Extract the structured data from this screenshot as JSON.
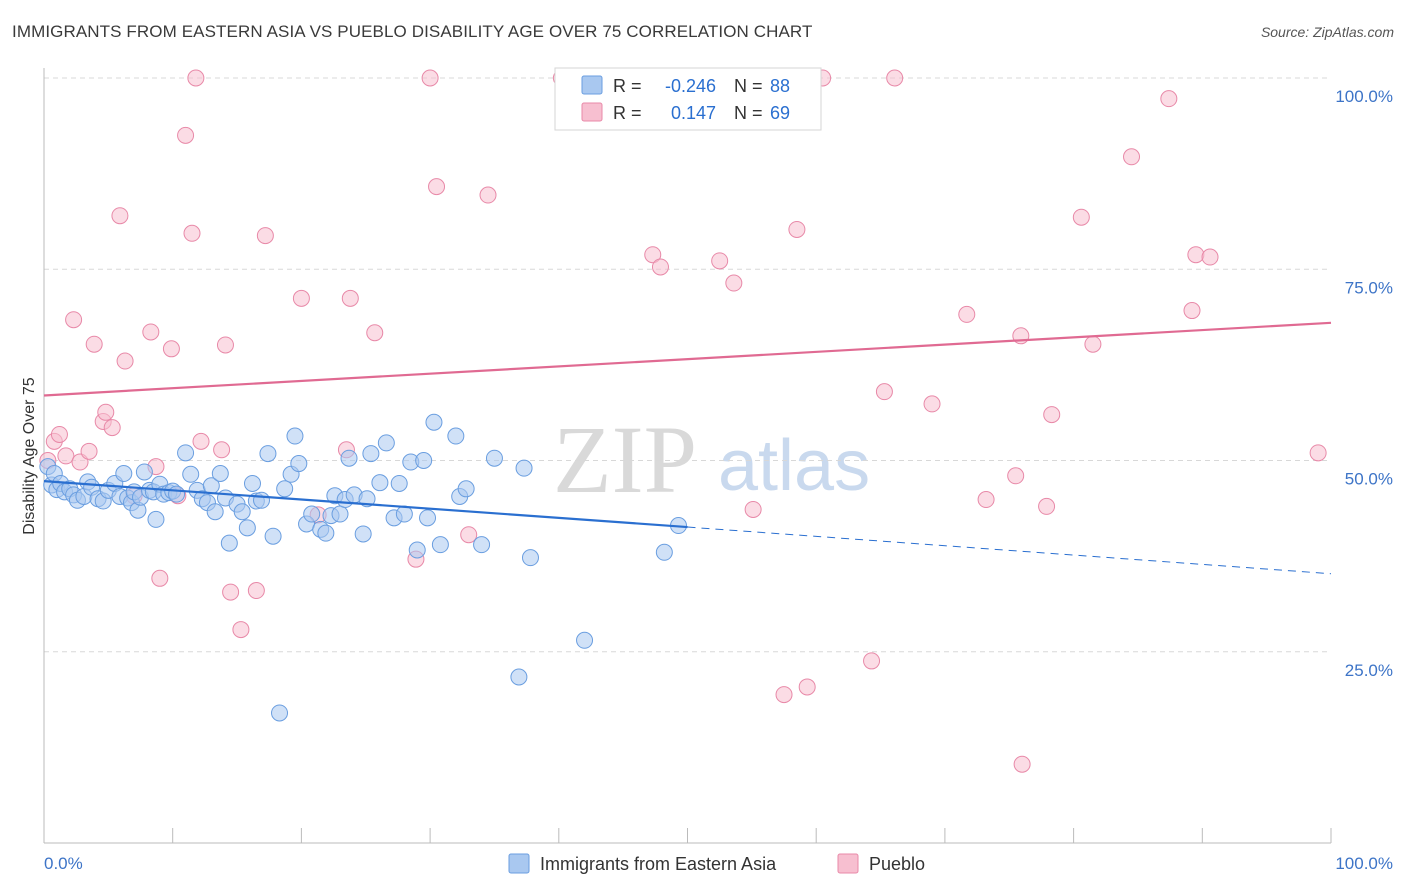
{
  "title": "IMMIGRANTS FROM EASTERN ASIA VS PUEBLO DISABILITY AGE OVER 75 CORRELATION CHART",
  "source": "Source: ZipAtlas.com",
  "watermark": {
    "zip": "ZIP",
    "atlas": "atlas"
  },
  "colors": {
    "blue_fill": "#a9c8f0",
    "blue_stroke": "#6a9ee0",
    "blue_line": "#2a6fd0",
    "pink_fill": "#f7bfd0",
    "pink_stroke": "#e889a8",
    "pink_line": "#e06a92",
    "grid": "#d8d8d8",
    "axis_text": "#3d74c7"
  },
  "chart_data": {
    "type": "scatter",
    "title": "IMMIGRANTS FROM EASTERN ASIA VS PUEBLO DISABILITY AGE OVER 75 CORRELATION CHART",
    "xlabel": "",
    "ylabel": "Disability Age Over 75",
    "xlim": [
      0,
      100
    ],
    "ylim": [
      0,
      100
    ],
    "x_tick_labels": [
      "0.0%",
      "100.0%"
    ],
    "y_ticks": [
      25,
      50,
      75,
      100
    ],
    "y_tick_labels": [
      "25.0%",
      "50.0%",
      "75.0%",
      "100.0%"
    ],
    "grid": true,
    "legend": {
      "placement": "top-center",
      "rows": [
        {
          "r_label": "R =",
          "r_value": "-0.246",
          "n_label": "N =",
          "n_value": "88"
        },
        {
          "r_label": "R =",
          "r_value": "0.147",
          "n_label": "N =",
          "n_value": "69"
        }
      ]
    },
    "bottom_legend": [
      "Immigrants from Eastern Asia",
      "Pueblo"
    ],
    "series": [
      {
        "name": "Immigrants from Eastern Asia",
        "trend": {
          "x0": 0,
          "y0": 47.3,
          "x1": 50,
          "y1": 41.3,
          "dash_to_x": 100,
          "dash_to_y": 35.2
        },
        "points": [
          [
            0.3,
            49.2
          ],
          [
            0.6,
            46.8
          ],
          [
            0.8,
            48.3
          ],
          [
            1.0,
            46.2
          ],
          [
            1.3,
            47.0
          ],
          [
            1.6,
            45.9
          ],
          [
            2.0,
            46.3
          ],
          [
            2.3,
            45.5
          ],
          [
            2.6,
            44.8
          ],
          [
            3.1,
            45.3
          ],
          [
            3.4,
            47.2
          ],
          [
            3.7,
            46.5
          ],
          [
            4.2,
            45.0
          ],
          [
            4.6,
            44.7
          ],
          [
            5.0,
            46.1
          ],
          [
            5.5,
            47.0
          ],
          [
            5.9,
            45.3
          ],
          [
            6.2,
            48.3
          ],
          [
            6.5,
            45.1
          ],
          [
            6.8,
            44.5
          ],
          [
            7.0,
            45.9
          ],
          [
            7.3,
            43.5
          ],
          [
            7.5,
            45.2
          ],
          [
            7.8,
            48.5
          ],
          [
            8.2,
            46.1
          ],
          [
            8.5,
            45.9
          ],
          [
            8.7,
            42.3
          ],
          [
            9.0,
            46.9
          ],
          [
            9.3,
            45.6
          ],
          [
            9.7,
            45.8
          ],
          [
            10.0,
            46.0
          ],
          [
            10.3,
            45.6
          ],
          [
            11.0,
            51.0
          ],
          [
            11.4,
            48.2
          ],
          [
            11.9,
            46.1
          ],
          [
            12.3,
            45.0
          ],
          [
            12.7,
            44.5
          ],
          [
            13.0,
            46.7
          ],
          [
            13.3,
            43.3
          ],
          [
            13.7,
            48.3
          ],
          [
            14.1,
            45.1
          ],
          [
            14.4,
            39.2
          ],
          [
            15.0,
            44.3
          ],
          [
            15.4,
            43.3
          ],
          [
            15.8,
            41.2
          ],
          [
            16.2,
            47.0
          ],
          [
            16.5,
            44.7
          ],
          [
            16.9,
            44.8
          ],
          [
            17.4,
            50.9
          ],
          [
            17.8,
            40.1
          ],
          [
            18.3,
            17.0
          ],
          [
            18.7,
            46.3
          ],
          [
            19.2,
            48.2
          ],
          [
            19.5,
            53.2
          ],
          [
            19.8,
            49.6
          ],
          [
            20.4,
            41.7
          ],
          [
            20.8,
            43.0
          ],
          [
            21.5,
            41.0
          ],
          [
            21.9,
            40.5
          ],
          [
            22.3,
            42.8
          ],
          [
            22.6,
            45.4
          ],
          [
            23.0,
            43.0
          ],
          [
            23.4,
            44.9
          ],
          [
            23.7,
            50.3
          ],
          [
            24.1,
            45.5
          ],
          [
            24.8,
            40.4
          ],
          [
            25.1,
            45.0
          ],
          [
            25.4,
            50.9
          ],
          [
            26.1,
            47.1
          ],
          [
            26.6,
            52.3
          ],
          [
            27.2,
            42.5
          ],
          [
            27.6,
            47.0
          ],
          [
            28.0,
            43.0
          ],
          [
            28.5,
            49.8
          ],
          [
            29.0,
            38.3
          ],
          [
            29.5,
            50.0
          ],
          [
            29.8,
            42.5
          ],
          [
            30.3,
            55.0
          ],
          [
            30.8,
            39.0
          ],
          [
            32.0,
            53.2
          ],
          [
            32.3,
            45.3
          ],
          [
            32.8,
            46.3
          ],
          [
            34.0,
            39.0
          ],
          [
            35.0,
            50.3
          ],
          [
            36.9,
            21.7
          ],
          [
            37.3,
            49.0
          ],
          [
            37.8,
            37.3
          ],
          [
            42.0,
            26.5
          ],
          [
            48.2,
            38.0
          ],
          [
            49.3,
            41.5
          ]
        ]
      },
      {
        "name": "Pueblo",
        "trend": {
          "x0": 0,
          "y0": 58.5,
          "x1": 100,
          "y1": 68.0
        },
        "points": [
          [
            0.3,
            50.0
          ],
          [
            0.8,
            52.5
          ],
          [
            1.2,
            53.4
          ],
          [
            1.7,
            50.6
          ],
          [
            2.3,
            68.4
          ],
          [
            2.8,
            49.8
          ],
          [
            3.5,
            51.2
          ],
          [
            3.9,
            65.2
          ],
          [
            4.6,
            55.1
          ],
          [
            4.8,
            56.3
          ],
          [
            5.3,
            54.3
          ],
          [
            5.9,
            82.0
          ],
          [
            6.3,
            63.0
          ],
          [
            7.0,
            45.4
          ],
          [
            8.3,
            66.8
          ],
          [
            8.7,
            49.2
          ],
          [
            9.0,
            34.6
          ],
          [
            9.9,
            64.6
          ],
          [
            10.4,
            45.4
          ],
          [
            11.0,
            92.5
          ],
          [
            11.5,
            79.7
          ],
          [
            11.8,
            100.0
          ],
          [
            12.2,
            52.5
          ],
          [
            13.8,
            51.4
          ],
          [
            14.1,
            65.1
          ],
          [
            14.5,
            32.8
          ],
          [
            15.3,
            27.9
          ],
          [
            16.5,
            33.0
          ],
          [
            17.2,
            79.4
          ],
          [
            20.0,
            71.2
          ],
          [
            21.3,
            42.9
          ],
          [
            23.5,
            51.4
          ],
          [
            23.8,
            71.2
          ],
          [
            25.7,
            66.7
          ],
          [
            28.9,
            37.1
          ],
          [
            30.0,
            100.0
          ],
          [
            30.5,
            85.8
          ],
          [
            33.0,
            40.3
          ],
          [
            34.5,
            84.7
          ],
          [
            40.2,
            100.0
          ],
          [
            40.9,
            97.0
          ],
          [
            47.3,
            76.9
          ],
          [
            47.9,
            75.3
          ],
          [
            52.5,
            76.1
          ],
          [
            53.6,
            73.2
          ],
          [
            55.1,
            43.6
          ],
          [
            57.5,
            19.4
          ],
          [
            58.5,
            80.2
          ],
          [
            59.3,
            20.4
          ],
          [
            60.5,
            100.0
          ],
          [
            64.3,
            23.8
          ],
          [
            65.3,
            59.0
          ],
          [
            66.1,
            100.0
          ],
          [
            69.0,
            57.4
          ],
          [
            71.7,
            69.1
          ],
          [
            73.2,
            44.9
          ],
          [
            75.5,
            48.0
          ],
          [
            75.9,
            66.3
          ],
          [
            76.0,
            10.3
          ],
          [
            77.9,
            44.0
          ],
          [
            78.3,
            56.0
          ],
          [
            80.6,
            81.8
          ],
          [
            81.5,
            65.2
          ],
          [
            84.5,
            89.7
          ],
          [
            87.4,
            97.3
          ],
          [
            89.2,
            69.6
          ],
          [
            89.5,
            76.9
          ],
          [
            90.6,
            76.6
          ],
          [
            99.0,
            51.0
          ]
        ]
      }
    ]
  }
}
